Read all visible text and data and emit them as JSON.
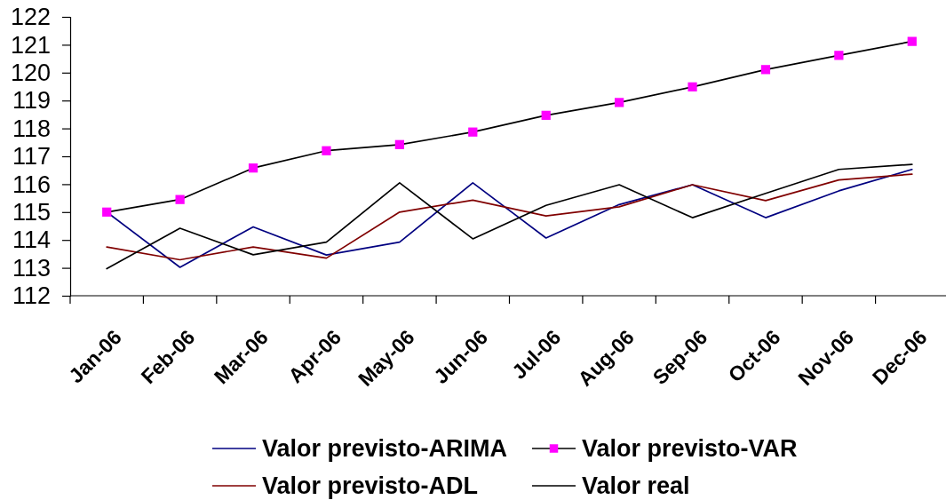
{
  "chart_data": {
    "type": "line",
    "categories": [
      "Jan-06",
      "Feb-06",
      "Mar-06",
      "Apr-06",
      "May-06",
      "Jun-06",
      "Jul-06",
      "Aug-06",
      "Sep-06",
      "Oct-06",
      "Nov-06",
      "Dec-06"
    ],
    "series": [
      {
        "name": "Valor previsto-ARIMA",
        "color": "#000080",
        "values": [
          115.0,
          113.02,
          114.47,
          113.46,
          113.92,
          116.05,
          114.07,
          115.27,
          115.98,
          114.8,
          115.76,
          116.53
        ]
      },
      {
        "name": "Valor previsto-VAR",
        "color": "#000000",
        "marker": "square",
        "colors": [
          "#ff00ff",
          "#ff00ff",
          "#ff00ff",
          "#ff00ff",
          "#ff00ff",
          "#ff00ff",
          "#ff00ff",
          "#ff00ff",
          "#ff00ff",
          "#ff00ff",
          "#ff00ff",
          "#ff00ff"
        ],
        "values": [
          115.0,
          115.45,
          116.58,
          117.2,
          117.42,
          117.87,
          118.47,
          118.93,
          119.49,
          120.11,
          120.62,
          121.12
        ]
      },
      {
        "name": "Valor previsto-ADL",
        "color": "#800000",
        "values": [
          113.75,
          113.29,
          113.75,
          113.35,
          115.0,
          115.43,
          114.86,
          115.19,
          115.98,
          115.41,
          116.15,
          116.36
        ]
      },
      {
        "name": "Valor real",
        "color": "#000000",
        "values": [
          112.97,
          114.42,
          113.47,
          113.92,
          116.05,
          114.04,
          115.24,
          115.98,
          114.8,
          115.67,
          116.53,
          116.71
        ]
      }
    ],
    "ylim": [
      112,
      122
    ],
    "yticks": [
      112,
      113,
      114,
      115,
      116,
      117,
      118,
      119,
      120,
      121,
      122
    ],
    "legend": "bottom",
    "marker": "none",
    "line_style": "solid"
  }
}
